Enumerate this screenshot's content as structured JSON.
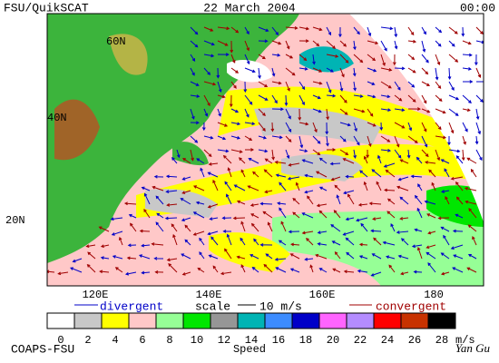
{
  "header": {
    "source": "FSU/QuikSCAT",
    "date": "22 March 2004",
    "time": "00:00"
  },
  "map": {
    "lat_labels": [
      "60N",
      "40N",
      "20N"
    ],
    "lon_labels": [
      "120E",
      "140E",
      "160E",
      "180"
    ]
  },
  "legend": {
    "divergent": "divergent",
    "scale": "scale",
    "scale_value": "10 m/s",
    "convergent": "convergent"
  },
  "colorbar": {
    "ticks": [
      0,
      2,
      4,
      6,
      8,
      10,
      12,
      14,
      16,
      18,
      20,
      22,
      24,
      26,
      28
    ],
    "colors": [
      "#ffffff",
      "#c8c8c8",
      "#ffff00",
      "#ffc8c8",
      "#96ff96",
      "#00e600",
      "#969696",
      "#00b4b4",
      "#3c8cff",
      "#0000c8",
      "#ff64ff",
      "#b48cff",
      "#ff0000",
      "#c83200",
      "#000000"
    ],
    "unit": "m/s",
    "title": "Speed"
  },
  "footer": {
    "org": "COAPS-FSU",
    "author": "Yan Gu"
  }
}
